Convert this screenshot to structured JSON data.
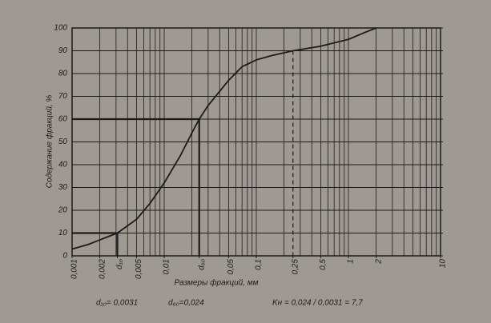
{
  "chart_data": {
    "type": "line",
    "y_label": "Содержание фракций, %",
    "x_label": "Размеры фракций, мм",
    "log_x": true,
    "color": "#1c1a1a",
    "xlim": [
      0.001,
      10
    ],
    "ylim": [
      0,
      100
    ],
    "xticks": [
      {
        "value": 0.001,
        "label": "0,001"
      },
      {
        "value": 0.002,
        "label": "0,002"
      },
      {
        "value": 0.0031,
        "label": "d₁₀"
      },
      {
        "value": 0.005,
        "label": "0,005"
      },
      {
        "value": 0.01,
        "label": "0,01"
      },
      {
        "value": 0.024,
        "label": "d₆₀"
      },
      {
        "value": 0.05,
        "label": "0,05"
      },
      {
        "value": 0.1,
        "label": "0,1"
      },
      {
        "value": 0.25,
        "label": "0,25"
      },
      {
        "value": 0.5,
        "label": "0,5"
      },
      1,
      2,
      10
    ],
    "yticks": [
      0,
      10,
      20,
      30,
      40,
      50,
      60,
      70,
      80,
      90,
      100
    ],
    "xgrid": [
      0.001,
      0.002,
      0.003,
      0.004,
      0.005,
      0.006,
      0.007,
      0.008,
      0.009,
      0.01,
      0.02,
      0.03,
      0.04,
      0.05,
      0.06,
      0.07,
      0.08,
      0.09,
      0.1,
      0.2,
      0.3,
      0.4,
      0.5,
      0.6,
      0.7,
      0.8,
      0.9,
      1,
      2,
      3,
      4,
      5,
      6,
      7,
      8,
      9,
      10
    ],
    "grid": true,
    "x": [
      0.001,
      0.0015,
      0.002,
      0.0031,
      0.005,
      0.007,
      0.01,
      0.015,
      0.02,
      0.024,
      0.03,
      0.05,
      0.07,
      0.1,
      0.15,
      0.25,
      0.5,
      1,
      1.5,
      2
    ],
    "values": [
      3,
      5,
      7,
      10,
      16,
      23,
      32,
      44,
      54,
      60,
      66,
      77,
      83,
      86,
      88,
      90,
      92,
      95,
      98,
      100
    ],
    "guides": [
      {
        "x": 0.0031,
        "y": 10
      },
      {
        "x": 0.024,
        "y": 60
      }
    ],
    "dashed_guide": {
      "x": 0.25,
      "y": 90
    },
    "annotations": [
      "d₁₀= 0,0031",
      "d₆₀=0,024",
      "Kн = 0,024 / 0,0031 = 7,7"
    ]
  }
}
